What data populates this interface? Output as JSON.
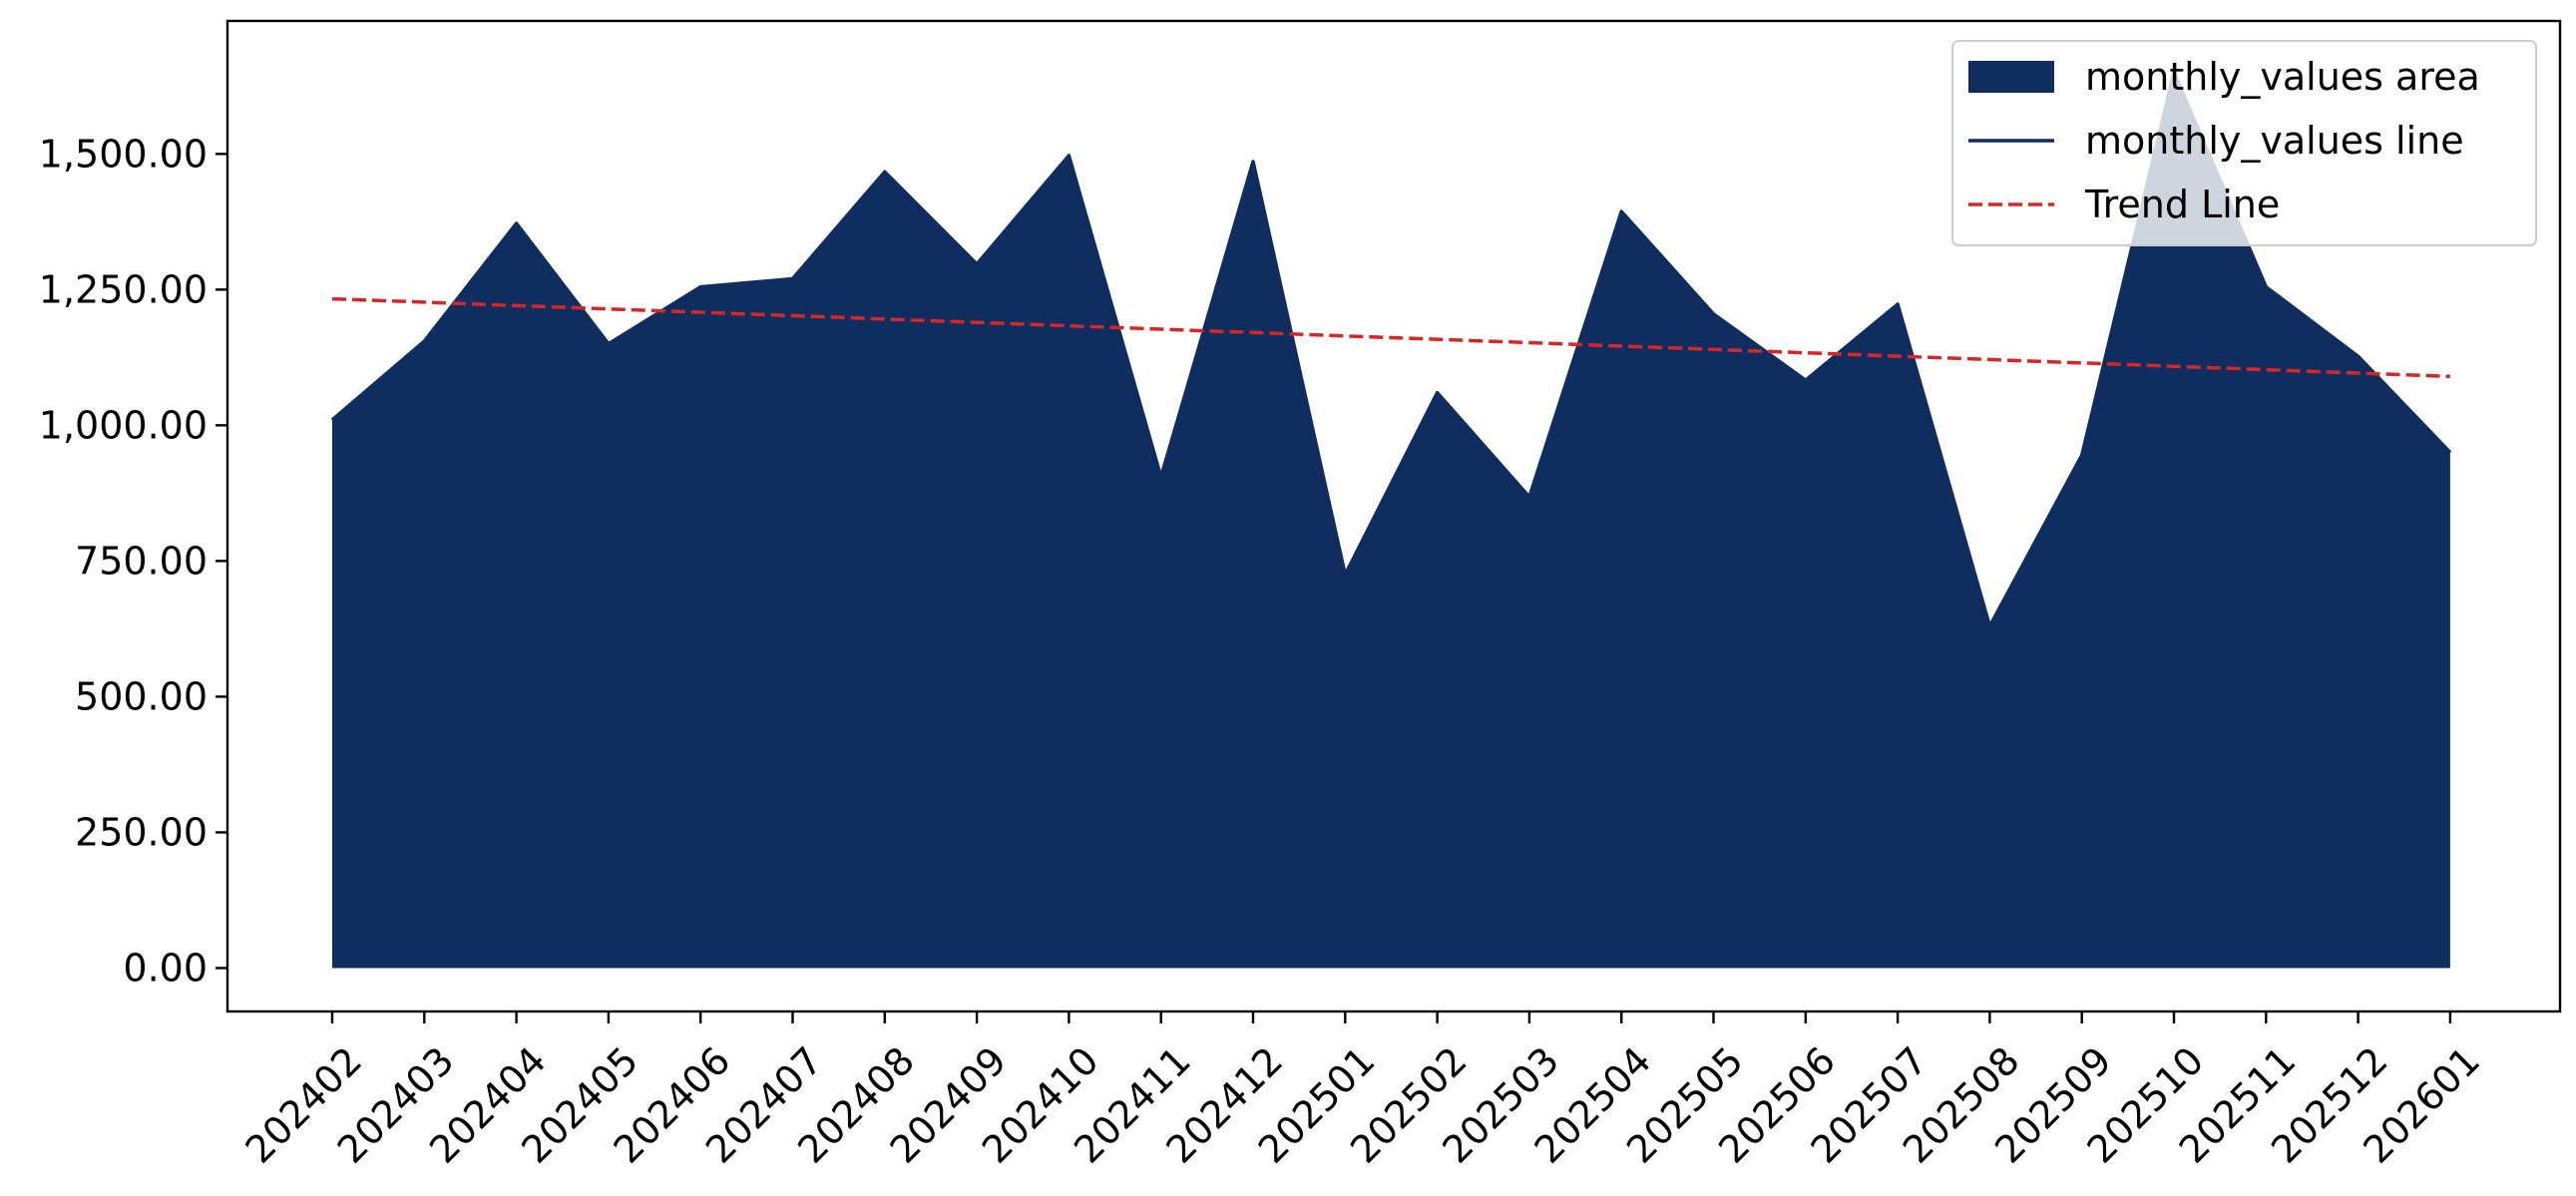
{
  "chart_data": {
    "type": "area",
    "title": "",
    "xlabel": "",
    "ylabel": "",
    "categories": [
      "202402",
      "202403",
      "202404",
      "202405",
      "202406",
      "202407",
      "202408",
      "202409",
      "202410",
      "202411",
      "202412",
      "202501",
      "202502",
      "202503",
      "202504",
      "202505",
      "202506",
      "202507",
      "202508",
      "202509",
      "202510",
      "202511",
      "202512",
      "202601"
    ],
    "series": [
      {
        "name": "monthly_values",
        "values": [
          1010,
          1155,
          1372,
          1150,
          1255,
          1270,
          1467,
          1297,
          1497,
          905,
          1486,
          725,
          1060,
          868,
          1394,
          1205,
          1083,
          1223,
          630,
          945,
          1650,
          1255,
          1127,
          950
        ]
      }
    ],
    "trend": {
      "name": "Trend Line",
      "start": 1233,
      "end": 1090
    },
    "ylim": [
      -80,
      1745
    ],
    "yticks": [
      0,
      250,
      500,
      750,
      1000,
      1250,
      1500
    ],
    "ytick_labels": [
      "0.00",
      "250.00",
      "500.00",
      "750.00",
      "1,000.00",
      "1,250.00",
      "1,500.00"
    ],
    "grid": false,
    "legend": {
      "position": "top-right",
      "entries": [
        "monthly_values area",
        "monthly_values line",
        "Trend Line"
      ]
    },
    "colors": {
      "area": "#0f2d5e",
      "line": "#0f2d5e",
      "trend": "#d62728",
      "axes": "#000000"
    }
  }
}
